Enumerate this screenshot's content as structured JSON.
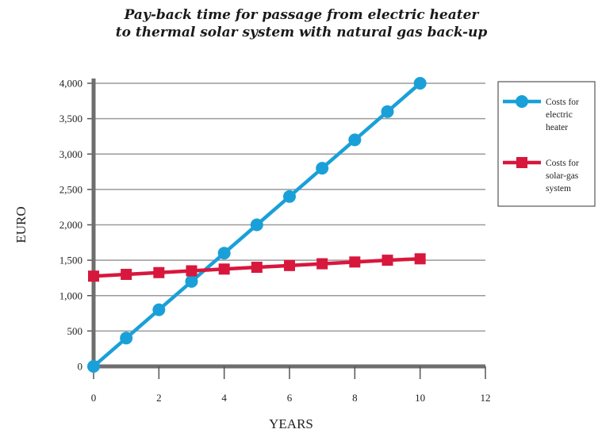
{
  "title_lines": [
    "Pay-back time for passage from electric heater",
    "to thermal solar system with natural gas back-up"
  ],
  "chart_data": {
    "type": "line",
    "xlabel": "YEARS",
    "ylabel": "EURO",
    "xlim": [
      0,
      12
    ],
    "ylim": [
      0,
      4000
    ],
    "x_ticks": [
      "0",
      "2",
      "4",
      "6",
      "8",
      "10",
      "12"
    ],
    "y_ticks": [
      "0",
      "500",
      "1,000",
      "1,500",
      "2,000",
      "2,500",
      "3,000",
      "3,500",
      "4,000"
    ],
    "grid": "horizontal",
    "legend_position": "right",
    "series": [
      {
        "name_lines": [
          "Costs for",
          "electric",
          "heater"
        ],
        "color": "#1aa0d8",
        "marker": "circle",
        "x": [
          0,
          1,
          2,
          3,
          4,
          5,
          6,
          7,
          8,
          9,
          10
        ],
        "values": [
          0,
          400,
          800,
          1200,
          1600,
          2000,
          2400,
          2800,
          3200,
          3600,
          4000
        ]
      },
      {
        "name_lines": [
          "Costs for",
          "solar-gas",
          "system"
        ],
        "color": "#d8173c",
        "marker": "square",
        "x": [
          0,
          1,
          2,
          3,
          4,
          5,
          6,
          7,
          8,
          9,
          10
        ],
        "values": [
          1275,
          1300,
          1325,
          1350,
          1375,
          1400,
          1425,
          1450,
          1475,
          1500,
          1520
        ]
      }
    ]
  }
}
